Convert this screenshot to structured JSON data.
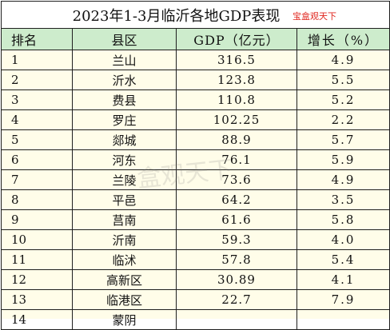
{
  "title": "2023年1-3月临沂各地GDP表现",
  "watermark_top": "宝盒观天下",
  "watermark_center": "盒观天下",
  "headers": {
    "rank": "排名",
    "county": "县区",
    "gdp": "GDP（亿元）",
    "growth": "增长（%）"
  },
  "rows": [
    {
      "rank": "1",
      "county": "兰山",
      "gdp": "316.5",
      "growth": "4.9"
    },
    {
      "rank": "2",
      "county": "沂水",
      "gdp": "123.8",
      "growth": "5.5"
    },
    {
      "rank": "3",
      "county": "费县",
      "gdp": "110.8",
      "growth": "5.2"
    },
    {
      "rank": "4",
      "county": "罗庄",
      "gdp": "102.25",
      "growth": "2.2"
    },
    {
      "rank": "5",
      "county": "郯城",
      "gdp": "88.9",
      "growth": "5.7"
    },
    {
      "rank": "6",
      "county": "河东",
      "gdp": "76.1",
      "growth": "5.9"
    },
    {
      "rank": "7",
      "county": "兰陵",
      "gdp": "73.6",
      "growth": "4.9"
    },
    {
      "rank": "8",
      "county": "平邑",
      "gdp": "64.2",
      "growth": "3.5"
    },
    {
      "rank": "9",
      "county": "莒南",
      "gdp": "61.6",
      "growth": "5.8"
    },
    {
      "rank": "10",
      "county": "沂南",
      "gdp": "59.3",
      "growth": "4.0"
    },
    {
      "rank": "11",
      "county": "临沭",
      "gdp": "57.8",
      "growth": "5.4"
    },
    {
      "rank": "12",
      "county": "高新区",
      "gdp": "30.89",
      "growth": "4.1"
    },
    {
      "rank": "13",
      "county": "临港区",
      "gdp": "22.7",
      "growth": "7.9"
    },
    {
      "rank": "14",
      "county": "蒙阴",
      "gdp": "",
      "growth": ""
    }
  ]
}
